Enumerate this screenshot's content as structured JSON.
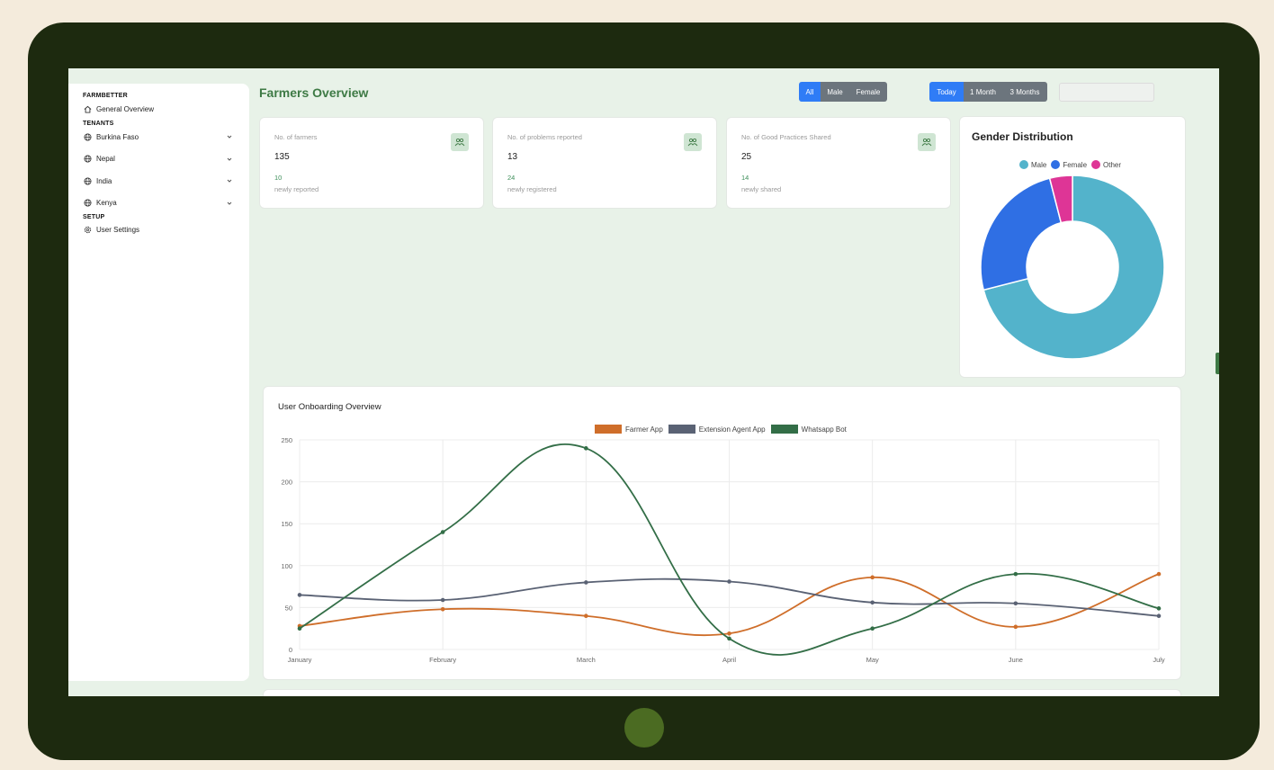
{
  "sidebar": {
    "brand": "FARMBETTER",
    "general_overview": "General Overview",
    "tenants_heading": "TENANTS",
    "tenants": [
      {
        "label": "Burkina Faso"
      },
      {
        "label": "Nepal"
      },
      {
        "label": "India"
      },
      {
        "label": "Kenya"
      }
    ],
    "setup_heading": "SETUP",
    "user_settings": "User Settings"
  },
  "header": {
    "title": "Farmers Overview",
    "gender_filter": [
      "All",
      "Male",
      "Female"
    ],
    "gender_active": "All",
    "period_filter": [
      "Today",
      "1 Month",
      "3 Months"
    ],
    "period_active": "Today",
    "date_value": ""
  },
  "stats": [
    {
      "label": "No. of farmers",
      "value": "135",
      "new_count": "10",
      "new_label": "newly reported"
    },
    {
      "label": "No. of problems reported",
      "value": "13",
      "new_count": "24",
      "new_label": "newly registered"
    },
    {
      "label": "No. of Good Practices Shared",
      "value": "25",
      "new_count": "14",
      "new_label": "newly shared"
    }
  ],
  "colors": {
    "accent": "#3e7a45",
    "male": "#53b3cb",
    "female": "#2f6fe4",
    "other": "#de3596",
    "farmer_app": "#cf6e2a",
    "extension_agent_app": "#5a6274",
    "whatsapp_bot": "#336e47"
  },
  "gender_chart": {
    "title": "Gender Distribution",
    "chart_data": {
      "type": "pie",
      "subtype": "doughnut",
      "labels": [
        "Male",
        "Female",
        "Other"
      ],
      "values": [
        71,
        25,
        4
      ],
      "legend": "top"
    }
  },
  "onboarding_chart": {
    "title": "User Onboarding Overview",
    "chart_data": {
      "type": "line",
      "categories": [
        "January",
        "February",
        "March",
        "April",
        "May",
        "June",
        "July"
      ],
      "series": [
        {
          "name": "Farmer App",
          "values": [
            28,
            48,
            40,
            19,
            86,
            27,
            90
          ]
        },
        {
          "name": "Extension Agent App",
          "values": [
            65,
            59,
            80,
            81,
            56,
            55,
            40
          ]
        },
        {
          "name": "Whatsapp Bot",
          "values": [
            25,
            140,
            240,
            13,
            25,
            90,
            49
          ]
        }
      ],
      "ylim": [
        0,
        250
      ],
      "yticks": [
        0,
        50,
        100,
        150,
        200,
        250
      ],
      "grid": true,
      "legend": "top",
      "curve": "smooth"
    }
  }
}
